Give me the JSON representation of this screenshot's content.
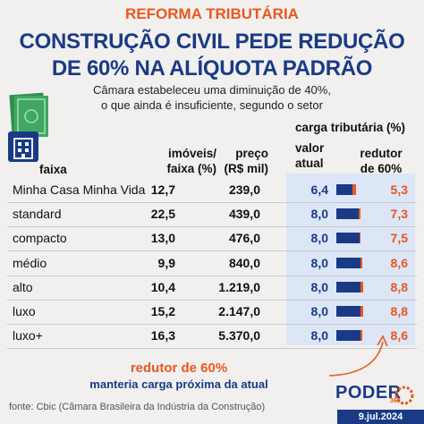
{
  "header": {
    "kicker": "REFORMA TRIBUTÁRIA",
    "headline_line1": "CONSTRUÇÃO CIVIL PEDE REDUÇÃO",
    "headline_line2": "DE 60% NA ALÍQUOTA PADRÃO",
    "subtitle_line1": "Câmara estabeleceu uma diminuição de 40%,",
    "subtitle_line2": "o que ainda é insuficiente, segundo o setor"
  },
  "columns": {
    "faixa": "faixa",
    "imoveis_1": "imóveis/",
    "imoveis_2": "faixa (%)",
    "preco_1": "preço",
    "preco_2": "(R$ mil)",
    "carga": "carga tributária (%)",
    "valor_1": "valor",
    "valor_2": "atual",
    "redutor_1": "redutor",
    "redutor_2": "de 60%"
  },
  "chart_data": {
    "type": "table",
    "columns": [
      "faixa",
      "imóveis/faixa (%)",
      "preço (R$ mil)",
      "valor atual",
      "redutor de 60%"
    ],
    "rows": [
      {
        "faixa": "Minha Casa Minha Vida",
        "imoveis": "12,7",
        "preco": "239,0",
        "atual": "6,4",
        "redutor": "5,3",
        "atual_num": 6.4,
        "redutor_num": 5.3
      },
      {
        "faixa": "standard",
        "imoveis": "22,5",
        "preco": "439,0",
        "atual": "8,0",
        "redutor": "7,3",
        "atual_num": 8.0,
        "redutor_num": 7.3
      },
      {
        "faixa": "compacto",
        "imoveis": "13,0",
        "preco": "476,0",
        "atual": "8,0",
        "redutor": "7,5",
        "atual_num": 8.0,
        "redutor_num": 7.5
      },
      {
        "faixa": "médio",
        "imoveis": "9,9",
        "preco": "840,0",
        "atual": "8,0",
        "redutor": "8,6",
        "atual_num": 8.0,
        "redutor_num": 8.6
      },
      {
        "faixa": "alto",
        "imoveis": "10,4",
        "preco": "1.219,0",
        "atual": "8,0",
        "redutor": "8,8",
        "atual_num": 8.0,
        "redutor_num": 8.8
      },
      {
        "faixa": "luxo",
        "imoveis": "15,2",
        "preco": "2.147,0",
        "atual": "8,0",
        "redutor": "8,8",
        "atual_num": 8.0,
        "redutor_num": 8.8
      },
      {
        "faixa": "luxo+",
        "imoveis": "16,3",
        "preco": "5.370,0",
        "atual": "8,0",
        "redutor": "8,6",
        "atual_num": 8.0,
        "redutor_num": 8.6
      }
    ],
    "bar_max": 8.8
  },
  "annotation": {
    "title": "redutor de 60%",
    "text": "manteria carga próxima da atual"
  },
  "footer": {
    "source": "fonte: Cbic (Câmara Brasileira da Indústria da Construção)",
    "logo": "PODER",
    "logo_sub": "360",
    "date": "9.jul.2024"
  },
  "colors": {
    "blue": "#1a3a86",
    "orange": "#e8581f",
    "highlight": "#dce6f7"
  }
}
